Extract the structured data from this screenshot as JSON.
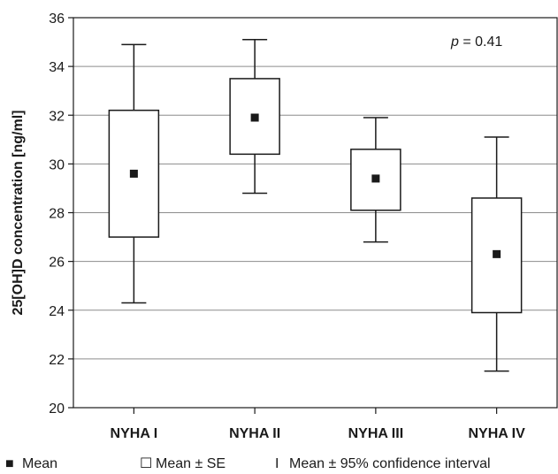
{
  "chart_data": {
    "type": "box",
    "title": "",
    "xlabel": "",
    "ylabel": "25[OH]D concentration [ng/ml]",
    "ylim": [
      20,
      36
    ],
    "yticks": [
      20,
      22,
      24,
      26,
      28,
      30,
      32,
      34,
      36
    ],
    "grid": true,
    "categories": [
      "NYHA I",
      "NYHA II",
      "NYHA III",
      "NYHA IV"
    ],
    "series": [
      {
        "category": "NYHA I",
        "mean": 29.6,
        "se_low": 27.0,
        "se_high": 32.2,
        "ci_low": 24.3,
        "ci_high": 34.9
      },
      {
        "category": "NYHA II",
        "mean": 31.9,
        "se_low": 30.4,
        "se_high": 33.5,
        "ci_low": 28.8,
        "ci_high": 35.1
      },
      {
        "category": "NYHA III",
        "mean": 29.4,
        "se_low": 28.1,
        "se_high": 30.6,
        "ci_low": 26.8,
        "ci_high": 31.9
      },
      {
        "category": "NYHA IV",
        "mean": 26.3,
        "se_low": 23.9,
        "se_high": 28.6,
        "ci_low": 21.5,
        "ci_high": 31.1
      }
    ],
    "annotation": {
      "var": "p",
      "text": " = 0.41"
    },
    "legend": {
      "placement": "bottom",
      "items": [
        {
          "symbol": "■",
          "label": "Mean"
        },
        {
          "symbol": "☐",
          "label": "Mean ± SE"
        },
        {
          "symbol": "I",
          "label": "Mean ± 95% confidence interval"
        }
      ]
    },
    "colors": {
      "ink": "#1a1a1a",
      "grid": "#8c8c8c",
      "background": "#ffffff"
    }
  }
}
